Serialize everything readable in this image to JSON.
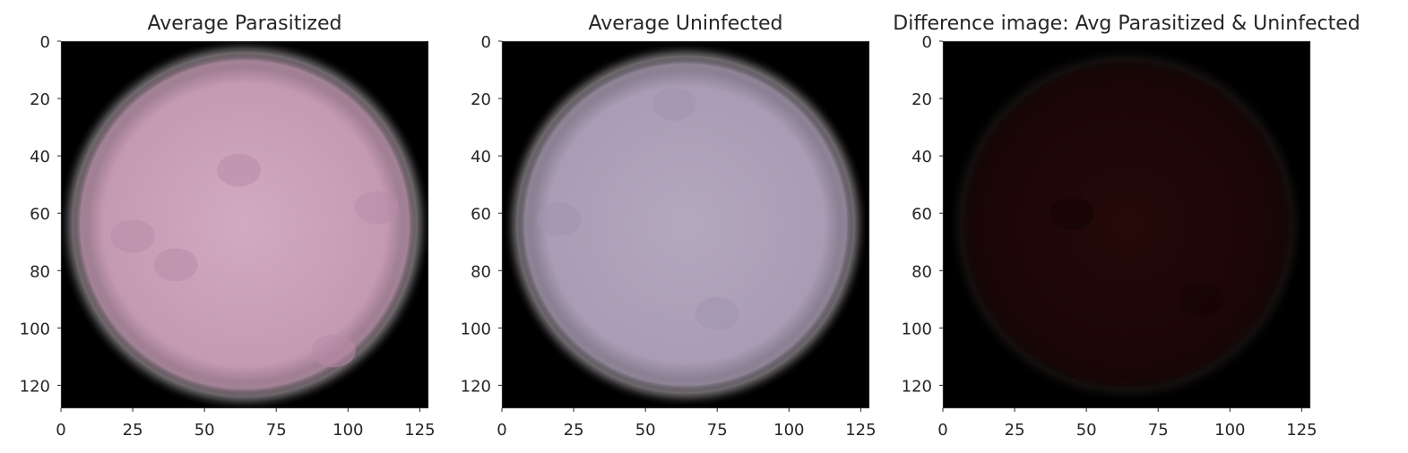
{
  "figure": {
    "colors": {
      "frame": "#262626",
      "tick_text": "#262626",
      "background": "#ffffff"
    }
  },
  "chart_data": [
    {
      "type": "heatmap",
      "title": "Average Parasitized",
      "xlabel": "",
      "ylabel": "",
      "xlim": [
        0,
        128
      ],
      "ylim": [
        128,
        0
      ],
      "x_ticks": [
        0,
        25,
        50,
        75,
        100,
        125
      ],
      "y_ticks": [
        0,
        20,
        40,
        60,
        80,
        100,
        120
      ],
      "grid": false,
      "image": {
        "description_colors": {
          "cell": "#c49ab3",
          "cell_highlight": "#d2aac2",
          "spot": "#b98aa9",
          "background": "#000000"
        },
        "cell_radius_fraction": 0.48,
        "spots": [
          [
            62,
            45
          ],
          [
            40,
            78
          ],
          [
            95,
            108
          ],
          [
            25,
            68
          ],
          [
            110,
            58
          ]
        ]
      }
    },
    {
      "type": "heatmap",
      "title": "Average Uninfected",
      "xlabel": "",
      "ylabel": "",
      "xlim": [
        0,
        128
      ],
      "ylim": [
        128,
        0
      ],
      "x_ticks": [
        0,
        25,
        50,
        75,
        100,
        125
      ],
      "y_ticks": [
        0,
        20,
        40,
        60,
        80,
        100,
        120
      ],
      "grid": false,
      "image": {
        "description_colors": {
          "cell": "#a99cb4",
          "cell_highlight": "#b4a8bf",
          "spot": "#a394ae",
          "background": "#000000"
        },
        "cell_radius_fraction": 0.47,
        "spots": [
          [
            20,
            62
          ],
          [
            75,
            95
          ],
          [
            60,
            22
          ]
        ]
      }
    },
    {
      "type": "heatmap",
      "title": "Difference image: Avg Parasitized & Uninfected",
      "xlabel": "",
      "ylabel": "",
      "xlim": [
        0,
        128
      ],
      "ylim": [
        128,
        0
      ],
      "x_ticks": [
        0,
        25,
        50,
        75,
        100,
        125
      ],
      "y_ticks": [
        0,
        20,
        40,
        60,
        80,
        100,
        120
      ],
      "grid": false,
      "image": {
        "description_colors": {
          "cell": "#1c0606",
          "cell_highlight": "#250909",
          "spot": "#140404",
          "background": "#000000",
          "rim": "#3a2a2a"
        },
        "cell_radius_fraction": 0.46,
        "spots": [
          [
            45,
            60
          ],
          [
            90,
            90
          ]
        ]
      }
    }
  ]
}
